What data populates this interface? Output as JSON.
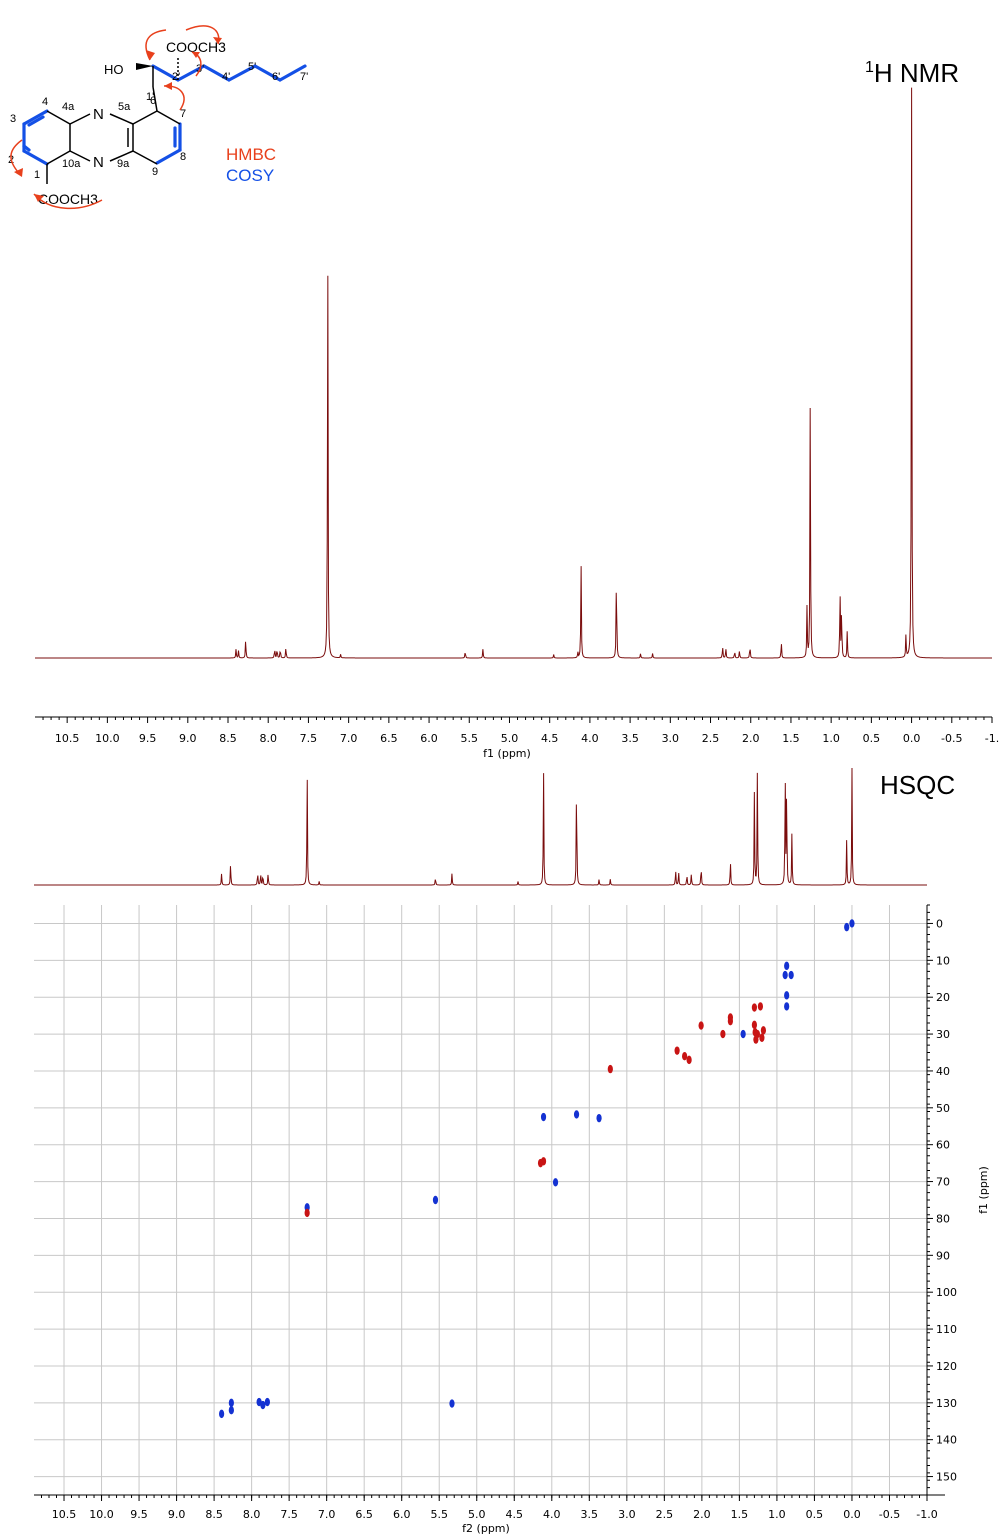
{
  "structure": {
    "top_ester": "COOCH3",
    "bottom_ester": "COOCH3",
    "hydroxyl": "HO",
    "nitrogen_top": "N",
    "nitrogen_bottom": "N",
    "atom_labels": [
      "1'",
      "2'",
      "3'",
      "4'",
      "5'",
      "6'",
      "7'",
      "4",
      "4a",
      "5a",
      "6",
      "7",
      "8",
      "9",
      "9a",
      "10a",
      "3",
      "2",
      "1"
    ],
    "legend": {
      "hmbc": "HMBC",
      "cosy": "COSY"
    },
    "colors": {
      "hmbc": "#e8401c",
      "cosy": "#1450e6",
      "bond": "#000000"
    }
  },
  "chart_data": [
    {
      "type": "line",
      "title": "1H NMR",
      "title_sup": "1",
      "title_main": "H NMR",
      "xlabel": "f1 (ppm)",
      "xlim": [
        10.9,
        -1.0
      ],
      "x_reversed": true,
      "x_ticks": [
        "10.5",
        "10.0",
        "9.5",
        "9.0",
        "8.5",
        "8.0",
        "7.5",
        "7.0",
        "6.5",
        "6.0",
        "5.5",
        "5.0",
        "4.5",
        "4.0",
        "3.5",
        "3.0",
        "2.5",
        "2.0",
        "1.5",
        "1.0",
        "0.5",
        "0.0",
        "-0.5",
        "-1."
      ],
      "color": "#7a0c0c",
      "peaks": [
        {
          "ppm": 8.4,
          "height": 0.016
        },
        {
          "ppm": 8.37,
          "height": 0.013
        },
        {
          "ppm": 8.28,
          "height": 0.035
        },
        {
          "ppm": 7.92,
          "height": 0.018
        },
        {
          "ppm": 7.89,
          "height": 0.018
        },
        {
          "ppm": 7.85,
          "height": 0.018
        },
        {
          "ppm": 7.78,
          "height": 0.02
        },
        {
          "ppm": 7.26,
          "height": 0.745
        },
        {
          "ppm": 7.1,
          "height": 0.006
        },
        {
          "ppm": 5.55,
          "height": 0.013
        },
        {
          "ppm": 5.33,
          "height": 0.016
        },
        {
          "ppm": 4.45,
          "height": 0.006
        },
        {
          "ppm": 4.15,
          "height": 0.01
        },
        {
          "ppm": 4.11,
          "height": 0.168
        },
        {
          "ppm": 3.67,
          "height": 0.166
        },
        {
          "ppm": 3.37,
          "height": 0.008
        },
        {
          "ppm": 3.22,
          "height": 0.008
        },
        {
          "ppm": 2.35,
          "height": 0.022
        },
        {
          "ppm": 2.31,
          "height": 0.018
        },
        {
          "ppm": 2.2,
          "height": 0.013
        },
        {
          "ppm": 2.14,
          "height": 0.013
        },
        {
          "ppm": 2.01,
          "height": 0.024
        },
        {
          "ppm": 1.62,
          "height": 0.03
        },
        {
          "ppm": 1.3,
          "height": 0.09
        },
        {
          "ppm": 1.26,
          "height": 0.46
        },
        {
          "ppm": 0.89,
          "height": 0.125
        },
        {
          "ppm": 0.87,
          "height": 0.09
        },
        {
          "ppm": 0.8,
          "height": 0.048
        },
        {
          "ppm": 0.07,
          "height": 0.04
        },
        {
          "ppm": 0.0,
          "height": 1.0
        }
      ]
    },
    {
      "type": "scatter",
      "title": "HSQC",
      "xlabel": "f2 (ppm)",
      "ylabel": "f1 (ppm)",
      "xlim": [
        10.9,
        -1.0
      ],
      "ylim": [
        -5,
        155
      ],
      "x_reversed": true,
      "x_ticks": [
        "10.5",
        "10.0",
        "9.5",
        "9.0",
        "8.5",
        "8.0",
        "7.5",
        "7.0",
        "6.5",
        "6.0",
        "5.5",
        "5.0",
        "4.5",
        "4.0",
        "3.5",
        "3.0",
        "2.5",
        "2.0",
        "1.5",
        "1.0",
        "0.5",
        "0.0",
        "-0.5",
        "-1.0"
      ],
      "y_ticks": [
        "0",
        "10",
        "20",
        "30",
        "40",
        "50",
        "60",
        "70",
        "80",
        "90",
        "100",
        "110",
        "120",
        "130",
        "140",
        "150"
      ],
      "grid": true,
      "series": [
        {
          "color": "#1432d2",
          "points": [
            [
              8.4,
              133.0
            ],
            [
              8.27,
              130.0
            ],
            [
              8.27,
              132.0
            ],
            [
              7.9,
              129.8
            ],
            [
              7.85,
              130.6
            ],
            [
              7.79,
              129.8
            ],
            [
              7.26,
              77.0
            ],
            [
              5.55,
              75.0
            ],
            [
              5.33,
              130.2
            ],
            [
              4.11,
              52.5
            ],
            [
              3.67,
              51.8
            ],
            [
              3.37,
              52.8
            ],
            [
              3.95,
              70.2
            ],
            [
              0.87,
              11.5
            ],
            [
              0.89,
              14.0
            ],
            [
              0.81,
              14.0
            ],
            [
              0.87,
              19.5
            ],
            [
              0.87,
              22.5
            ],
            [
              0.07,
              1.0
            ],
            [
              0.0,
              0.0
            ],
            [
              1.45,
              30.0
            ]
          ]
        },
        {
          "color": "#c81414",
          "points": [
            [
              7.26,
              78.5
            ],
            [
              4.15,
              65.0
            ],
            [
              4.11,
              64.5
            ],
            [
              3.22,
              39.5
            ],
            [
              2.33,
              34.5
            ],
            [
              2.23,
              36.0
            ],
            [
              2.17,
              37.0
            ],
            [
              2.01,
              27.7
            ],
            [
              1.62,
              25.5
            ],
            [
              1.62,
              26.5
            ],
            [
              1.3,
              22.8
            ],
            [
              1.22,
              22.5
            ],
            [
              1.3,
              27.5
            ],
            [
              1.29,
              29.5
            ],
            [
              1.26,
              30.0
            ],
            [
              1.28,
              31.5
            ],
            [
              1.2,
              31.0
            ],
            [
              1.18,
              29.0
            ],
            [
              1.72,
              30.0
            ]
          ]
        }
      ],
      "projection": {
        "color": "#7a0c0c",
        "peaks": [
          {
            "ppm": 8.4,
            "height": 0.1
          },
          {
            "ppm": 8.28,
            "height": 0.2
          },
          {
            "ppm": 7.92,
            "height": 0.12
          },
          {
            "ppm": 7.88,
            "height": 0.11
          },
          {
            "ppm": 7.85,
            "height": 0.1
          },
          {
            "ppm": 7.78,
            "height": 0.11
          },
          {
            "ppm": 7.26,
            "height": 1.0
          },
          {
            "ppm": 7.1,
            "height": 0.03
          },
          {
            "ppm": 5.55,
            "height": 0.07
          },
          {
            "ppm": 5.33,
            "height": 0.1
          },
          {
            "ppm": 4.45,
            "height": 0.03
          },
          {
            "ppm": 4.11,
            "height": 1.0
          },
          {
            "ppm": 3.67,
            "height": 1.0
          },
          {
            "ppm": 3.37,
            "height": 0.05
          },
          {
            "ppm": 3.22,
            "height": 0.05
          },
          {
            "ppm": 2.35,
            "height": 0.14
          },
          {
            "ppm": 2.31,
            "height": 0.12
          },
          {
            "ppm": 2.2,
            "height": 0.1
          },
          {
            "ppm": 2.14,
            "height": 0.1
          },
          {
            "ppm": 2.01,
            "height": 0.18
          },
          {
            "ppm": 1.62,
            "height": 0.22
          },
          {
            "ppm": 1.3,
            "height": 0.8
          },
          {
            "ppm": 1.26,
            "height": 1.0
          },
          {
            "ppm": 0.89,
            "height": 1.0
          },
          {
            "ppm": 0.87,
            "height": 0.9
          },
          {
            "ppm": 0.8,
            "height": 0.45
          },
          {
            "ppm": 0.07,
            "height": 0.4
          },
          {
            "ppm": 0.0,
            "height": 1.0
          }
        ]
      }
    }
  ]
}
